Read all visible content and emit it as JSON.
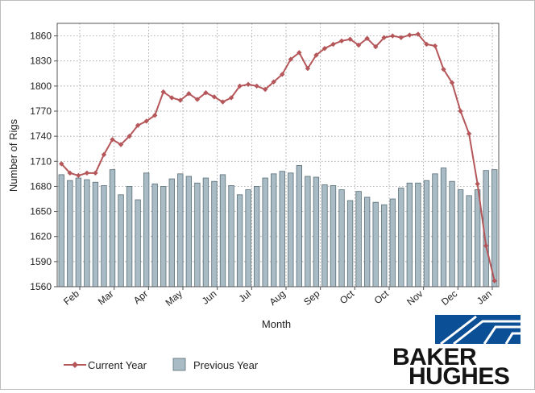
{
  "chart_data": {
    "type": "bar",
    "title": "",
    "xlabel": "Month",
    "ylabel": "Number of Rigs",
    "ylim": [
      1560,
      1875
    ],
    "yticks": [
      1560,
      1590,
      1620,
      1650,
      1680,
      1710,
      1740,
      1770,
      1800,
      1830,
      1860
    ],
    "grid": true,
    "legend_position": "bottom",
    "month_labels": [
      "Feb",
      "Mar",
      "Apr",
      "May",
      "Jun",
      "Jul",
      "Aug",
      "Sep",
      "Oct",
      "Oct",
      "Nov",
      "Dec",
      "Jan"
    ],
    "series": [
      {
        "name": "Current Year",
        "type": "line",
        "color": "#b5575a",
        "values": [
          1707,
          1696,
          1693,
          1696,
          1696,
          1718,
          1736,
          1730,
          1740,
          1753,
          1758,
          1765,
          1793,
          1786,
          1783,
          1791,
          1784,
          1792,
          1787,
          1781,
          1786,
          1800,
          1802,
          1800,
          1796,
          1805,
          1814,
          1832,
          1840,
          1821,
          1837,
          1845,
          1850,
          1854,
          1856,
          1849,
          1857,
          1847,
          1858,
          1860,
          1858,
          1861,
          1862,
          1850,
          1848,
          1820,
          1804,
          1770,
          1743,
          1683,
          1609,
          1567
        ]
      },
      {
        "name": "Previous Year",
        "type": "bar",
        "color": "#a9bcc5",
        "values": [
          1694,
          1687,
          1690,
          1688,
          1685,
          1681,
          1700,
          1670,
          1680,
          1664,
          1696,
          1683,
          1680,
          1689,
          1695,
          1692,
          1684,
          1690,
          1686,
          1694,
          1681,
          1670,
          1676,
          1680,
          1690,
          1695,
          1698,
          1696,
          1705,
          1692,
          1691,
          1682,
          1681,
          1676,
          1663,
          1674,
          1667,
          1661,
          1658,
          1665,
          1678,
          1684,
          1684,
          1687,
          1695,
          1702,
          1686,
          1676,
          1669,
          1676,
          1699,
          1700
        ]
      }
    ]
  },
  "logo": {
    "line1": "BAKER",
    "line2": "HUGHES",
    "color": "#0b4f96"
  }
}
